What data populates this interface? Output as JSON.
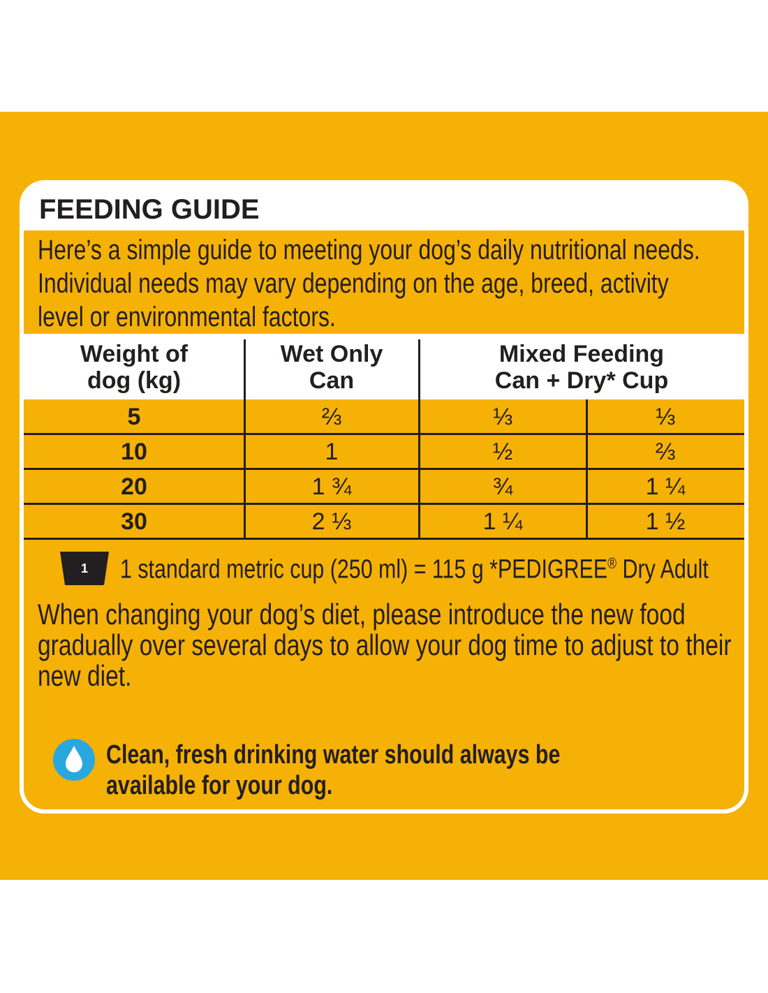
{
  "title": "FEEDING GUIDE",
  "intro": [
    "Here’s a simple guide to meeting your dog’s daily nutritional needs.",
    "Individual needs may vary depending on the age, breed, activity",
    "level or environmental factors."
  ],
  "table": {
    "headers": [
      [
        "Weight of",
        "dog (kg)"
      ],
      [
        "Wet Only",
        "Can"
      ],
      [
        "Mixed Feeding",
        "Can + Dry* Cup"
      ]
    ],
    "rows": [
      [
        "5",
        "⅔",
        "⅓",
        "⅓"
      ],
      [
        "10",
        "1",
        "½",
        "⅔"
      ],
      [
        "20",
        "1 ¾",
        "¾",
        "1 ¼"
      ],
      [
        "30",
        "2 ⅓",
        "1 ¼",
        "1 ½"
      ]
    ]
  },
  "cup_note": {
    "icon": "1",
    "text": "1 standard metric cup (250 ml) = 115 g *PEDIGREE",
    "mark": "®",
    "text_after": " Dry Adult"
  },
  "diet_note": [
    "When changing your dog’s diet, please introduce the new food",
    "gradually over several days to allow your dog time to adjust to their",
    "new diet."
  ],
  "water_note": [
    "Clean, fresh drinking water should always be",
    "available for your dog."
  ]
}
